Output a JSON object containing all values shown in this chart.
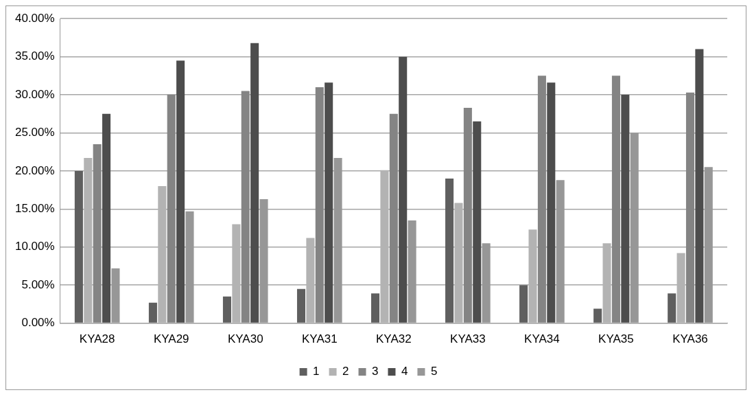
{
  "chart_data": {
    "type": "bar",
    "categories": [
      "KYA28",
      "KYA29",
      "KYA30",
      "KYA31",
      "KYA32",
      "KYA33",
      "KYA34",
      "KYA35",
      "KYA36"
    ],
    "series": [
      {
        "name": "1",
        "color": "#5f5f5f",
        "values": [
          20.0,
          2.7,
          3.5,
          4.5,
          3.9,
          19.0,
          5.0,
          1.9,
          3.9
        ]
      },
      {
        "name": "2",
        "color": "#b3b3b3",
        "values": [
          21.7,
          18.0,
          13.0,
          11.2,
          20.1,
          15.8,
          12.3,
          10.5,
          9.2
        ]
      },
      {
        "name": "3",
        "color": "#848484",
        "values": [
          23.5,
          30.0,
          30.5,
          31.0,
          27.5,
          28.3,
          32.5,
          32.5,
          30.3
        ]
      },
      {
        "name": "4",
        "color": "#4d4d4d",
        "values": [
          27.5,
          34.5,
          36.8,
          31.6,
          35.0,
          26.5,
          31.6,
          30.0,
          36.0
        ]
      },
      {
        "name": "5",
        "color": "#979797",
        "values": [
          7.2,
          14.7,
          16.3,
          21.7,
          13.5,
          10.5,
          18.8,
          25.0,
          20.5
        ]
      }
    ],
    "ylim": [
      0,
      40
    ],
    "yticks": [
      {
        "value": 0,
        "label": "0.00%"
      },
      {
        "value": 5,
        "label": "5.00%"
      },
      {
        "value": 10,
        "label": "10.00%"
      },
      {
        "value": 15,
        "label": "15.00%"
      },
      {
        "value": 20,
        "label": "20.00%"
      },
      {
        "value": 25,
        "label": "25.00%"
      },
      {
        "value": 30,
        "label": "30.00%"
      },
      {
        "value": 35,
        "label": "35.00%"
      },
      {
        "value": 40,
        "label": "40.00%"
      }
    ],
    "grid": "y",
    "legend": "bottom"
  }
}
